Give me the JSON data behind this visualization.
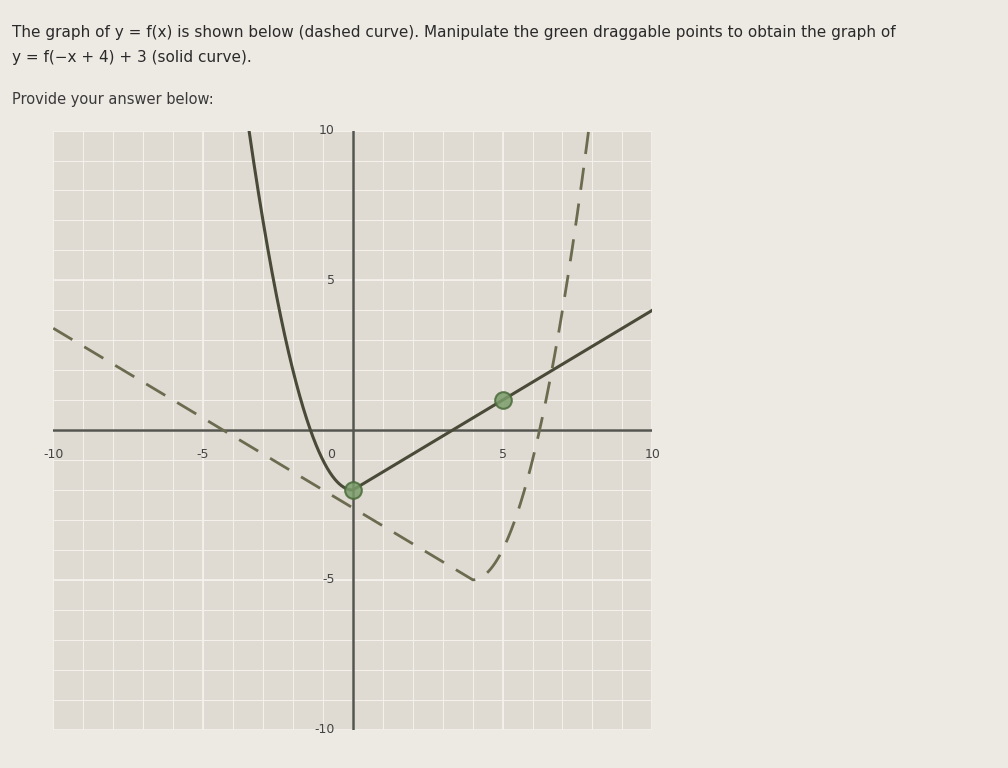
{
  "title_line1": "The graph of y = f(x) is shown below (dashed curve). Manipulate the green draggable points to obtain the graph of",
  "title_line2": "y = f(−x + 4) + 3 (solid curve).",
  "subtitle": "Provide your answer below:",
  "bg_color": "#ede9e3",
  "plot_bg_color": "#e0dbd2",
  "grid_color": "#f5f2ee",
  "axis_color": "#555550",
  "dashed_color": "#6b6b50",
  "solid_color": "#4a4a38",
  "green_fill": "#7a9c6a",
  "green_edge": "#4a6a3a",
  "xlim": [
    -10,
    10
  ],
  "ylim": [
    -10,
    10
  ],
  "xtick_labels": [
    -10,
    -5,
    5,
    10
  ],
  "ytick_labels": [
    -10,
    -5,
    5,
    10
  ],
  "green_points": [
    [
      0,
      -2
    ],
    [
      5,
      1
    ]
  ],
  "f_vertex_x": 4,
  "f_vertex_y": -5,
  "figsize": [
    10.08,
    7.68
  ],
  "dpi": 100,
  "title_fontsize": 11,
  "subtitle_fontsize": 10.5
}
